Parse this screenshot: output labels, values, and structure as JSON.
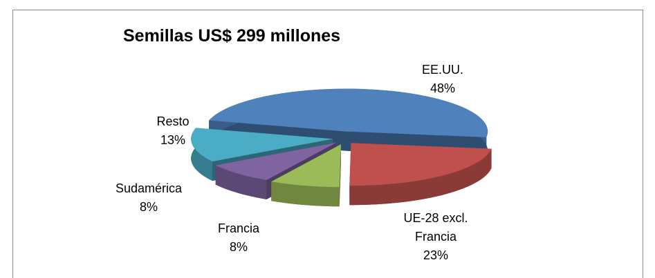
{
  "chart_data": {
    "type": "pie3d",
    "title": "Semillas US$ 299 millones",
    "categories": [
      "EE.UU.",
      "UE-28 excl. Francia",
      "Francia",
      "Sudamérica",
      "Resto"
    ],
    "values": [
      48,
      23,
      8,
      8,
      13
    ],
    "value_labels": [
      "48%",
      "23%",
      "8%",
      "8%",
      "13%"
    ],
    "colors": [
      "#4f81bd",
      "#c0504d",
      "#9bbb59",
      "#8064a2",
      "#4bacc6"
    ]
  }
}
